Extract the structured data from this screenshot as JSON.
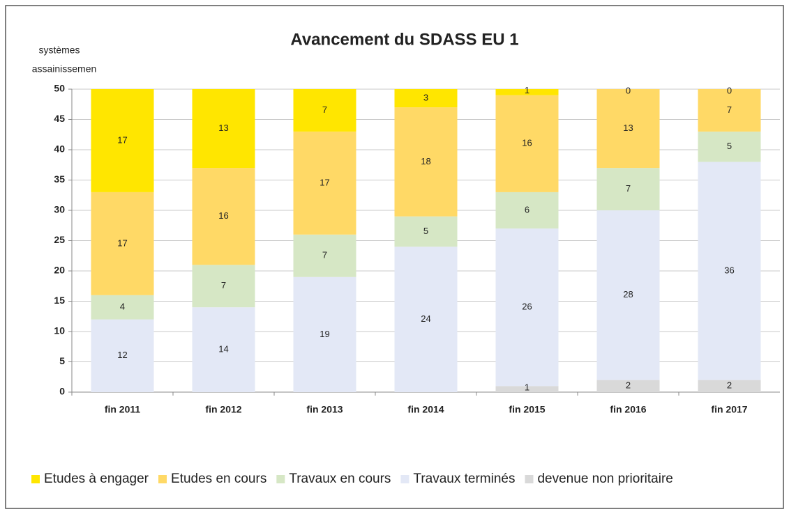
{
  "chart_data": {
    "type": "stacked_bar",
    "title": "Avancement du SDASS EU 1",
    "y_label": [
      "systèmes",
      "assainissemen"
    ],
    "categories": [
      "fin 2011",
      "fin 2012",
      "fin 2013",
      "fin 2014",
      "fin 2015",
      "fin 2016",
      "fin 2017"
    ],
    "series": [
      {
        "name": "Etudes à engager",
        "color": "#ffe600",
        "values": [
          17,
          13,
          7,
          3,
          1,
          0,
          0
        ]
      },
      {
        "name": "Etudes en cours",
        "color": "#ffd966",
        "values": [
          17,
          16,
          17,
          18,
          16,
          13,
          7
        ]
      },
      {
        "name": "Travaux en cours",
        "color": "#d6e7c5",
        "values": [
          4,
          7,
          7,
          5,
          6,
          7,
          5
        ]
      },
      {
        "name": "Travaux terminés",
        "color": "#e3e8f6",
        "values": [
          12,
          14,
          19,
          24,
          26,
          28,
          36
        ]
      },
      {
        "name": "devenue non prioritaire",
        "color": "#d9d9d9",
        "values": [
          null,
          null,
          null,
          null,
          1,
          2,
          2
        ]
      }
    ],
    "ylim": [
      0,
      50
    ],
    "yticks": [
      0,
      5,
      10,
      15,
      20,
      25,
      30,
      35,
      40,
      45,
      50
    ],
    "grid": true,
    "legend": "bottom"
  }
}
